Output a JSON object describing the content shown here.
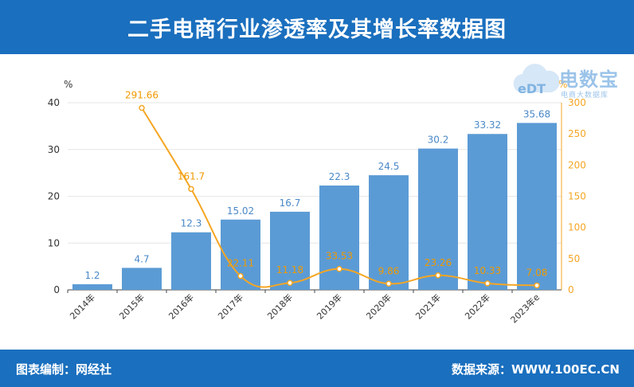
{
  "header": {
    "title": "二手电商行业渗透率及其增长率数据图"
  },
  "footer": {
    "left": "图表编制：网经社",
    "right": "数据来源：WWW.100EC.CN"
  },
  "logo": {
    "brand": "电数宝",
    "sub": "电商大数据库",
    "mark": "eDT"
  },
  "colors": {
    "bar": "#5b9bd5",
    "line": "#f5a623",
    "header": "#1a6fbe"
  },
  "chart_data": {
    "type": "bar",
    "categories": [
      "2014年",
      "2015年",
      "2016年",
      "2017年",
      "2018年",
      "2019年",
      "2020年",
      "2021年",
      "2022年",
      "2023年e"
    ],
    "series": [
      {
        "type": "bar",
        "axis": "left",
        "values": [
          1.2,
          4.7,
          12.3,
          15.02,
          16.7,
          22.3,
          24.5,
          30.2,
          33.32,
          35.68
        ]
      },
      {
        "type": "line",
        "axis": "right",
        "values": [
          null,
          291.66,
          161.7,
          22.11,
          11.18,
          33.53,
          9.86,
          23.26,
          10.33,
          7.08
        ]
      }
    ],
    "bar_labels": [
      "1.2",
      "4.7",
      "12.3",
      "15.02",
      "16.7",
      "22.3",
      "24.5",
      "30.2",
      "33.32",
      "35.68"
    ],
    "line_labels": [
      "",
      "291.66",
      "161.7",
      "22.11",
      "11.18",
      "33.53",
      "9.86",
      "23.26",
      "10.33",
      "7.08"
    ],
    "y_left": {
      "unit": "%",
      "ylim": [
        0,
        40
      ],
      "ticks": [
        "0",
        "10",
        "20",
        "30",
        "40"
      ]
    },
    "y_right": {
      "unit": "%",
      "ylim": [
        0,
        300
      ],
      "ticks": [
        "0",
        "50",
        "100",
        "150",
        "200",
        "250",
        "300"
      ]
    },
    "grid": true,
    "legend": "none"
  }
}
